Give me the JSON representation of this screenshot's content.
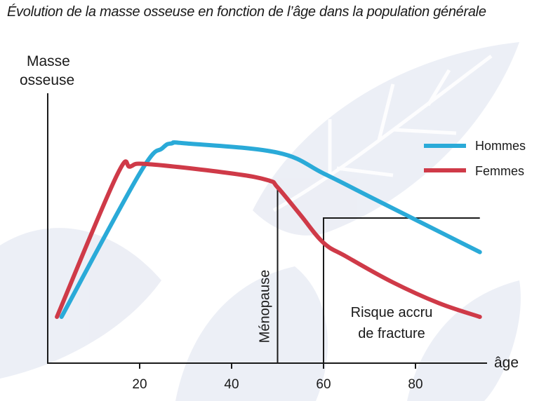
{
  "title": "Évolution de la masse osseuse en fonction de l’âge dans la population générale",
  "chart_data": {
    "type": "line",
    "title": "Évolution de la masse osseuse en fonction de l’âge dans la population générale",
    "ylabel_line1": "Masse",
    "ylabel_line2": "osseuse",
    "xlabel": "âge",
    "xlim": [
      0,
      95
    ],
    "ylim": [
      0,
      100
    ],
    "xticks": [
      20,
      40,
      60,
      80
    ],
    "series": [
      {
        "name": "Hommes",
        "color": "#2aaad8",
        "x": [
          3,
          20,
          25,
          27,
          30,
          50,
          60,
          70,
          80,
          90,
          94
        ],
        "y": [
          20,
          82,
          93,
          95,
          95,
          91,
          82,
          72,
          62,
          52,
          48
        ]
      },
      {
        "name": "Femmes",
        "color": "#cf3a48",
        "x": [
          2,
          15,
          18,
          22,
          40,
          48,
          50,
          55,
          60,
          65,
          75,
          85,
          94
        ],
        "y": [
          20,
          81,
          85,
          86,
          82,
          79,
          76,
          64,
          52,
          46,
          35,
          26,
          20
        ]
      }
    ],
    "annotations": {
      "menopause": {
        "label": "Ménopause",
        "x": 50
      },
      "fracture": {
        "label_line1": "Risque accru",
        "label_line2": "de fracture",
        "x_start": 60,
        "x_end": 94
      }
    },
    "legend_position": "top-right"
  }
}
